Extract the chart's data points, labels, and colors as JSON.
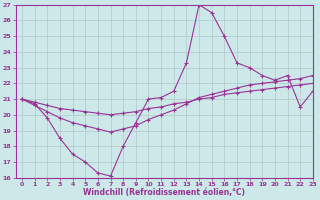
{
  "x": [
    0,
    1,
    2,
    3,
    4,
    5,
    6,
    7,
    8,
    9,
    10,
    11,
    12,
    13,
    14,
    15,
    16,
    17,
    18,
    19,
    20,
    21,
    22,
    23
  ],
  "line1": [
    21,
    20.7,
    19.8,
    18.5,
    17.5,
    17.0,
    16.3,
    16.1,
    18.0,
    19.5,
    21.0,
    21.1,
    21.5,
    23.3,
    27.0,
    26.5,
    25.0,
    23.3,
    23.0,
    22.5,
    22.2,
    22.5,
    20.5,
    21.5
  ],
  "line2": [
    21.0,
    20.6,
    20.2,
    19.8,
    19.5,
    19.3,
    19.1,
    18.9,
    19.1,
    19.3,
    19.7,
    20.0,
    20.3,
    20.7,
    21.1,
    21.3,
    21.5,
    21.7,
    21.9,
    22.0,
    22.1,
    22.2,
    22.3,
    22.5
  ],
  "line3": [
    21.0,
    20.8,
    20.6,
    20.4,
    20.3,
    20.2,
    20.1,
    20.0,
    20.1,
    20.2,
    20.4,
    20.5,
    20.7,
    20.8,
    21.0,
    21.1,
    21.3,
    21.4,
    21.5,
    21.6,
    21.7,
    21.8,
    21.9,
    22.0
  ],
  "color": "#993399",
  "bg_color": "#cce8e8",
  "grid_color": "#b0c8c8",
  "xlabel": "Windchill (Refroidissement éolien,°C)",
  "xlim": [
    -0.5,
    23
  ],
  "ylim": [
    16,
    27
  ],
  "yticks": [
    16,
    17,
    18,
    19,
    20,
    21,
    22,
    23,
    24,
    25,
    26,
    27
  ],
  "xticks": [
    0,
    1,
    2,
    3,
    4,
    5,
    6,
    7,
    8,
    9,
    10,
    11,
    12,
    13,
    14,
    15,
    16,
    17,
    18,
    19,
    20,
    21,
    22,
    23
  ]
}
